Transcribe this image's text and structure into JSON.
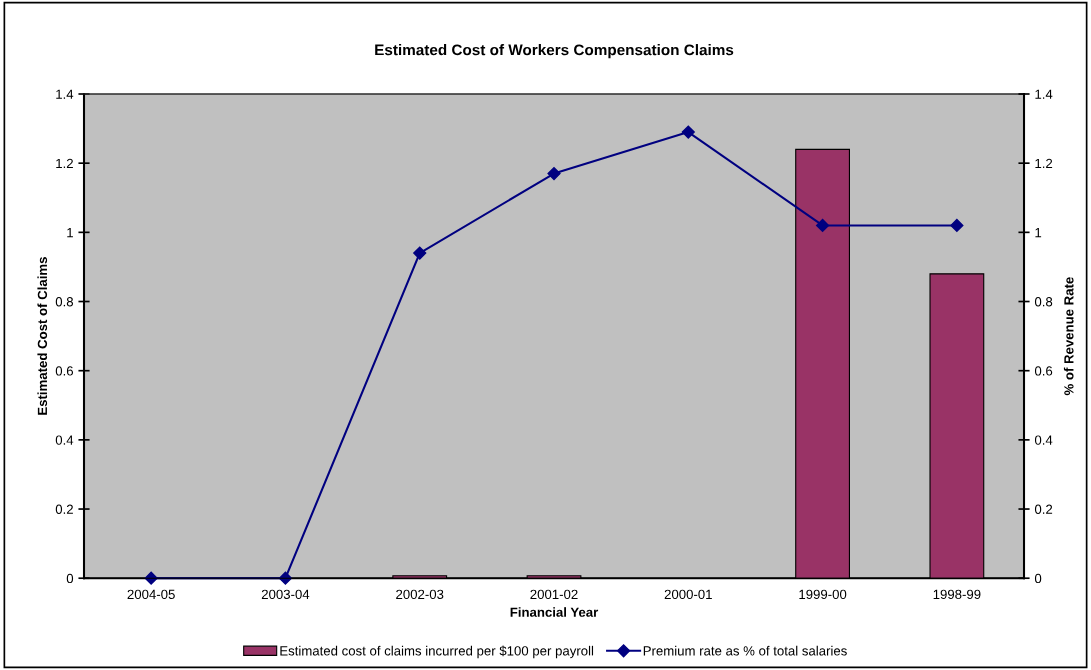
{
  "chart_data": {
    "type": "bar",
    "title": "Estimated Cost of Workers Compensation Claims",
    "xlabel": "Financial Year",
    "ylabel": "Estimated Cost of Claims",
    "y2label": "% of Revenue Rate",
    "categories": [
      "2004-05",
      "2003-04",
      "2002-03",
      "2001-02",
      "2000-01",
      "1999-00",
      "1998-99"
    ],
    "series": [
      {
        "name": "Estimated cost of claims incurred per $100 per payroll",
        "color": "#993366",
        "values": [
          null,
          null,
          0.007,
          0.007,
          null,
          1.24,
          0.88
        ]
      },
      {
        "name": "Premium rate as % of total salaries",
        "type": "line",
        "axis": "y2",
        "color": "#000080",
        "marker": "diamond",
        "values": [
          0,
          0,
          0.94,
          1.17,
          1.29,
          1.02,
          1.02
        ]
      }
    ],
    "ylim": [
      0,
      1.4
    ],
    "yticks": [
      0,
      0.2,
      0.4,
      0.6,
      0.8,
      1,
      1.2,
      1.4
    ],
    "y2lim": [
      0,
      1.4
    ],
    "y2ticks": [
      0,
      0.2,
      0.4,
      0.6,
      0.8,
      1,
      1.2,
      1.4
    ],
    "grid": false,
    "legend": "bottom"
  }
}
